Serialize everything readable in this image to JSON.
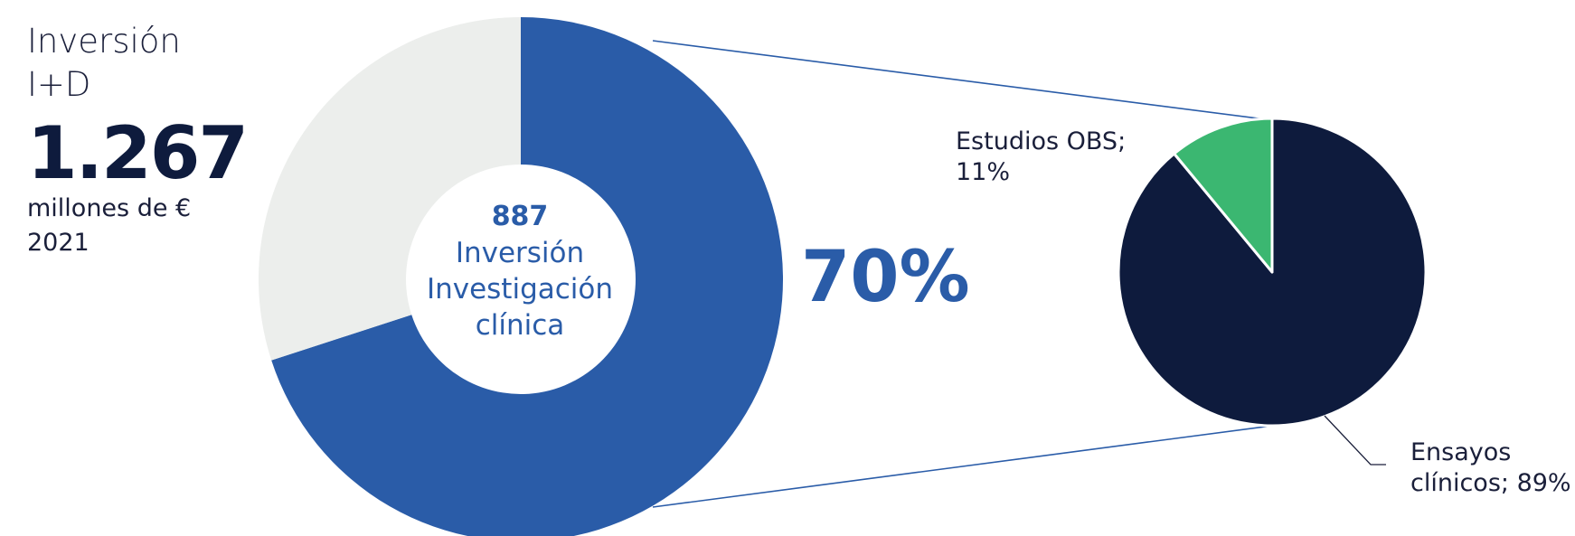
{
  "summary": {
    "title_line1": "Inversión",
    "title_line2": "I+D",
    "value": "1.267",
    "unit": "millones de €",
    "year": "2021"
  },
  "donut": {
    "center_value": "887",
    "center_line1": "Inversión",
    "center_line2": "Investigación",
    "center_line3": "clínica",
    "highlight_pct": "70%"
  },
  "pie_labels": {
    "obs_line1": "Estudios OBS;",
    "obs_line2": "11%",
    "ensayos_line1": "Ensayos",
    "ensayos_line2": "clínicos; 89%"
  },
  "colors": {
    "donut_main": "#2a5ca8",
    "donut_rest": "#eceeec",
    "pie_ensayos": "#0e1b3d",
    "pie_obs": "#3bb771",
    "connector": "#2a5ca8"
  },
  "chart_data": [
    {
      "type": "pie",
      "variant": "donut",
      "slices": [
        {
          "label": "Investigación clínica",
          "value": 70
        },
        {
          "label": "",
          "value": 30
        }
      ]
    },
    {
      "type": "pie",
      "slices": [
        {
          "label": "Ensayos clínicos",
          "value": 89
        },
        {
          "label": "Estudios OBS",
          "value": 11
        }
      ]
    }
  ]
}
